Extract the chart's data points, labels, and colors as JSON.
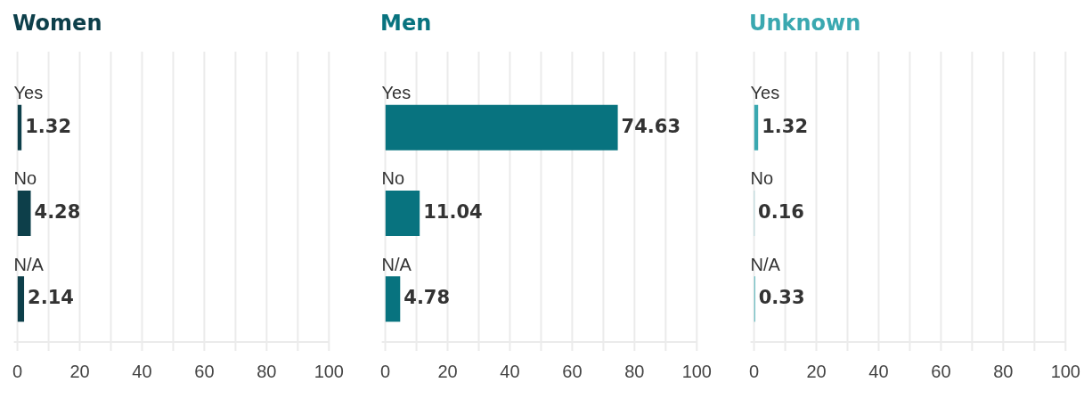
{
  "chart_data": [
    {
      "type": "bar",
      "orientation": "horizontal",
      "title": "Women",
      "categories": [
        "Yes",
        "No",
        "N/A"
      ],
      "values": [
        1.32,
        4.28,
        2.14
      ],
      "color": "#0d3f4a",
      "xlim": [
        0,
        100
      ],
      "xticks": [
        0,
        {
          "value": 10,
          "label": null
        },
        20,
        {
          "value": 30,
          "label": null
        },
        40,
        {
          "value": 50,
          "label": null
        },
        60,
        {
          "value": 70,
          "label": null
        },
        80,
        {
          "value": 90,
          "label": null
        },
        100
      ],
      "grid": "x",
      "data_labels": true
    },
    {
      "type": "bar",
      "orientation": "horizontal",
      "title": "Men",
      "categories": [
        "Yes",
        "No",
        "N/A"
      ],
      "values": [
        74.63,
        11.04,
        4.78
      ],
      "color": "#08737f",
      "xlim": [
        0,
        100
      ],
      "xticks": [
        0,
        {
          "value": 10,
          "label": null
        },
        20,
        {
          "value": 30,
          "label": null
        },
        40,
        {
          "value": 50,
          "label": null
        },
        60,
        {
          "value": 70,
          "label": null
        },
        80,
        {
          "value": 90,
          "label": null
        },
        100
      ],
      "grid": "x",
      "data_labels": true
    },
    {
      "type": "bar",
      "orientation": "horizontal",
      "title": "Unknown",
      "categories": [
        "Yes",
        "No",
        "N/A"
      ],
      "values": [
        1.32,
        0.16,
        0.33
      ],
      "color": "#3aa8b0",
      "xlim": [
        0,
        100
      ],
      "xticks": [
        0,
        {
          "value": 10,
          "label": null
        },
        20,
        {
          "value": 30,
          "label": null
        },
        40,
        {
          "value": 50,
          "label": null
        },
        60,
        {
          "value": 70,
          "label": null
        },
        80,
        {
          "value": 90,
          "label": null
        },
        100
      ],
      "grid": "x",
      "data_labels": true
    }
  ]
}
